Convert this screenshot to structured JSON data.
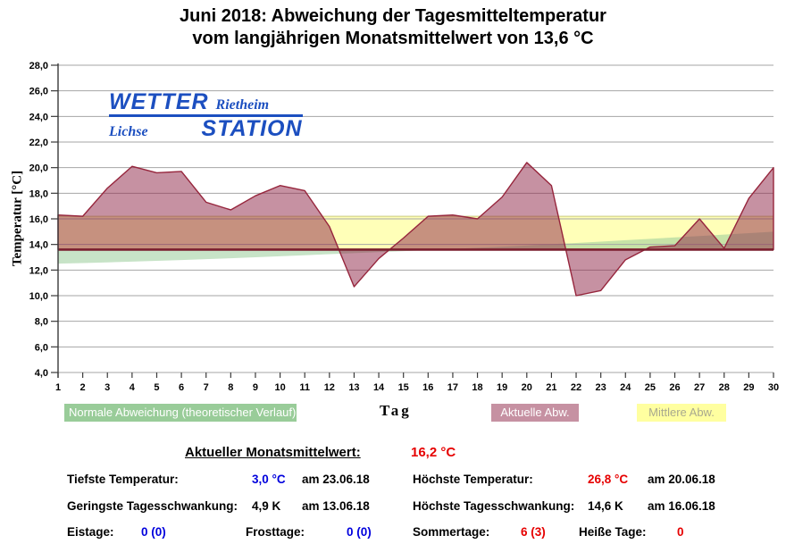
{
  "title": {
    "line1": "Juni 2018: Abweichung der Tagesmitteltemperatur",
    "line2": "vom langjährigen Monatsmittelwert von 13,6 °C"
  },
  "logo": {
    "word_top": "WETTER",
    "word_top_right": "Rietheim",
    "word_bottom_left": "Lichse",
    "word_bottom": "STATION",
    "color": "#1c4fc0"
  },
  "chart_data": {
    "type": "area",
    "xlabel": "Tag",
    "ylabel": "Temperatur [°C]",
    "ylim": [
      4,
      28
    ],
    "xlim": [
      1,
      30
    ],
    "grid": true,
    "grid_color": "#a6a6a6",
    "axis_color": "#3a3a3a",
    "baseline_value": 13.6,
    "baseline_color": "#7a1e2e",
    "month_mean_value": 16.2,
    "x": [
      1,
      2,
      3,
      4,
      5,
      6,
      7,
      8,
      9,
      10,
      11,
      12,
      13,
      14,
      15,
      16,
      17,
      18,
      19,
      20,
      21,
      22,
      23,
      24,
      25,
      26,
      27,
      28,
      29,
      30
    ],
    "xtick_labels": [
      "1",
      "2",
      "3",
      "4",
      "5",
      "6",
      "7",
      "8",
      "9",
      "10",
      "11",
      "12",
      "13",
      "14",
      "15",
      "16",
      "17",
      "18",
      "19",
      "20",
      "21",
      "22",
      "23",
      "24",
      "25",
      "26",
      "27",
      "28",
      "29",
      "30"
    ],
    "ytick_values": [
      28,
      26,
      24,
      22,
      20,
      18,
      16,
      14,
      12,
      10,
      8,
      6,
      4
    ],
    "ytick_labels": [
      "28,0",
      "26,0",
      "24,0",
      "22,0",
      "20,0",
      "18,0",
      "16,0",
      "14,0",
      "12,0",
      "10,0",
      "8,0",
      "6,0",
      "4,0"
    ],
    "series": [
      {
        "name": "Aktuelle Abw.",
        "render": "area-vs-baseline",
        "stroke": "#96253c",
        "fill": "rgba(141,35,69,0.5)",
        "values": [
          16.3,
          16.2,
          18.4,
          20.1,
          19.6,
          19.7,
          17.3,
          16.7,
          17.8,
          18.6,
          18.2,
          15.4,
          10.7,
          12.9,
          14.5,
          16.2,
          16.3,
          16.0,
          17.7,
          20.4,
          18.6,
          10.0,
          10.4,
          12.8,
          13.8,
          13.9,
          16.0,
          13.7,
          17.6,
          20.0
        ]
      },
      {
        "name": "Normale Abweichung (theoretischer Verlauf)",
        "render": "area-vs-baseline",
        "stroke": "none",
        "fill": "rgba(153,204,153,0.55)",
        "values": [
          12.5,
          12.55,
          12.6,
          12.66,
          12.72,
          12.78,
          12.85,
          12.92,
          13.0,
          13.08,
          13.16,
          13.24,
          13.32,
          13.4,
          13.48,
          13.56,
          13.65,
          13.74,
          13.83,
          13.92,
          14.02,
          14.12,
          14.22,
          14.33,
          14.44,
          14.55,
          14.66,
          14.77,
          14.88,
          15.0
        ]
      },
      {
        "name": "Mittlere Abw.",
        "render": "band",
        "from": 13.6,
        "to": 16.2,
        "fill": "rgba(255,255,176,0.9)",
        "edge": "#c9c97d"
      }
    ]
  },
  "legend": {
    "chips": [
      {
        "label": "Normale Abweichung (theoretischer Verlauf)",
        "bg": "#99cc99",
        "text_color": "#ffffff"
      },
      {
        "label": "Aktuelle Abw.",
        "bg": "#c691a2",
        "text_color": "#ffffff"
      },
      {
        "label": "Mittlere Abw.",
        "bg": "#ffffa0",
        "text_color": "#a9a98f"
      }
    ]
  },
  "stats": {
    "header": {
      "label": "Aktueller Monatsmittelwert:",
      "value": "16,2 °C",
      "value_color": "#e60000"
    },
    "rows": [
      {
        "label": "Tiefste Temperatur:",
        "value": "3,0 °C",
        "value_color": "#0000dd",
        "date": "am 23.06.18"
      },
      {
        "label": "Höchste Temperatur:",
        "value": "26,8 °C",
        "value_color": "#e60000",
        "date": "am 20.06.18"
      },
      {
        "label": "Geringste Tagesschwankung:",
        "value": "4,9 K",
        "value_color": "#000000",
        "date": "am 13.06.18"
      },
      {
        "label": "Höchste Tagesschwankung:",
        "value": "14,6 K",
        "value_color": "#000000",
        "date": "am 16.06.18"
      }
    ],
    "counters": [
      {
        "label": "Eistage:",
        "value": "0 (0)",
        "value_color": "#0000dd"
      },
      {
        "label": "Frosttage:",
        "value": "0 (0)",
        "value_color": "#0000dd"
      },
      {
        "label": "Sommertage:",
        "value": "6 (3)",
        "value_color": "#e60000"
      },
      {
        "label": "Heiße Tage:",
        "value": "0",
        "value_color": "#e60000"
      }
    ]
  }
}
